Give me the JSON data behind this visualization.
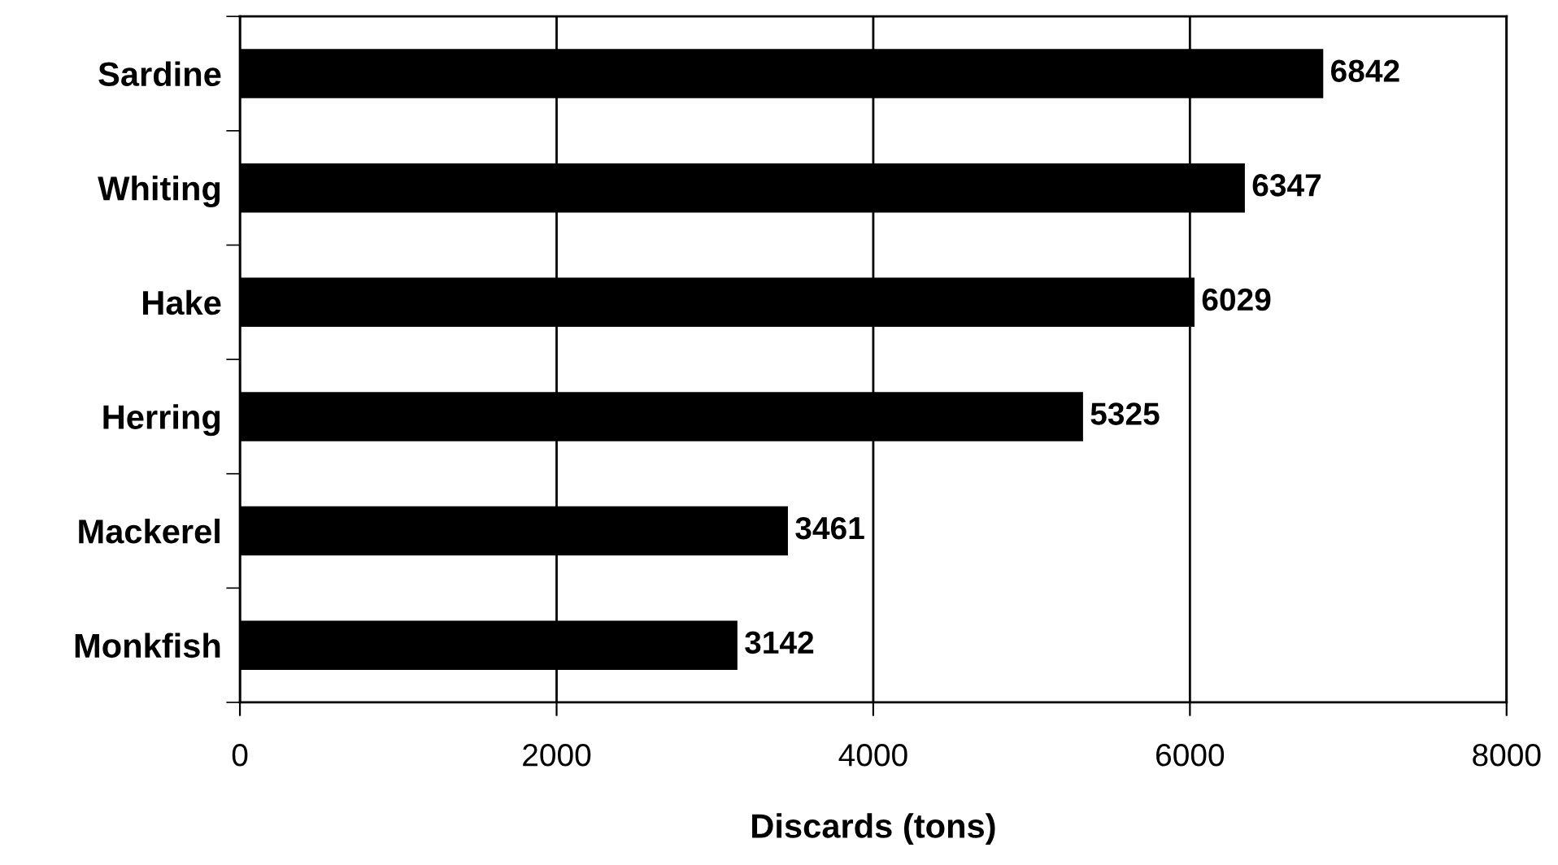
{
  "chart_data": {
    "type": "bar",
    "orientation": "horizontal",
    "xlabel": "Discards (tons)",
    "categories": [
      "Sardine",
      "Whiting",
      "Hake",
      "Herring",
      "Mackerel",
      "Monkfish"
    ],
    "values": [
      6842,
      6347,
      6029,
      5325,
      3461,
      3142
    ],
    "color": "#000000",
    "xlim": [
      0,
      8000
    ],
    "xticks": [
      0,
      2000,
      4000,
      6000,
      8000
    ],
    "grid": "x",
    "data_labels": true
  }
}
